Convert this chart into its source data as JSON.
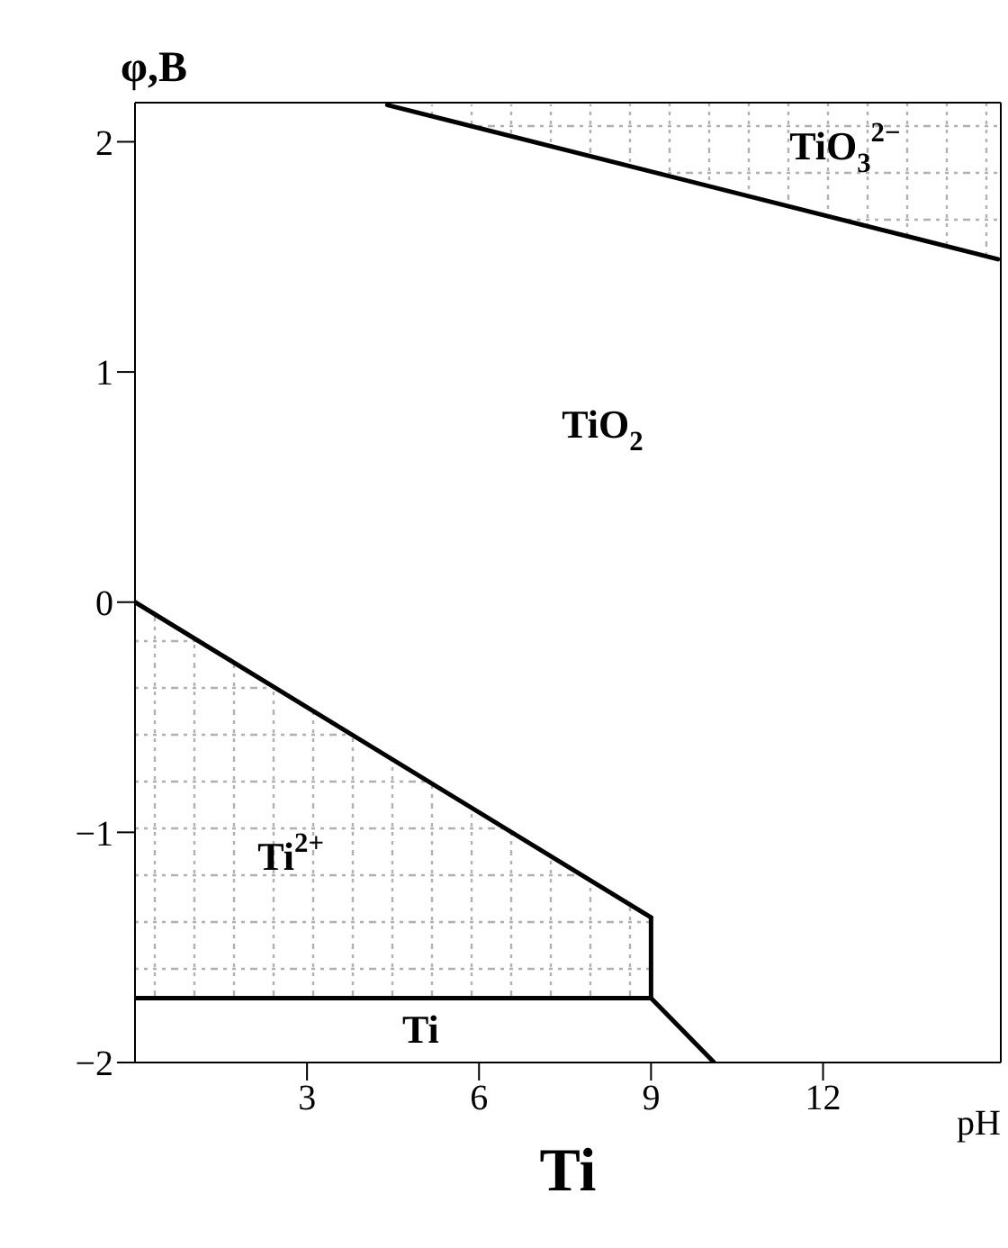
{
  "chart_data": {
    "type": "line",
    "title": "Ti",
    "xlabel": "pH",
    "ylabel": "φ,B",
    "xlim": [
      0,
      15.1
    ],
    "ylim": [
      -2,
      2.17
    ],
    "xticks": [
      3,
      6,
      9,
      12
    ],
    "yticks": [
      {
        "value": -2,
        "label": "−2"
      },
      {
        "value": -1,
        "label": "−1"
      },
      0,
      1,
      2
    ],
    "marker": "none",
    "series": [
      {
        "color": "#000000",
        "x": [
          4.4,
          15.05
        ],
        "values": [
          2.16,
          1.49
        ]
      },
      {
        "color": "#000000",
        "x": [
          0,
          9
        ],
        "values": [
          0,
          -1.37
        ]
      },
      {
        "color": "#000000",
        "x": [
          9,
          9
        ],
        "values": [
          -1.37,
          -1.72
        ]
      },
      {
        "color": "#000000",
        "x": [
          0,
          9
        ],
        "values": [
          -1.72,
          -1.72
        ]
      },
      {
        "color": "#000000",
        "x": [
          9,
          10.1
        ],
        "values": [
          -1.72,
          -2
        ]
      }
    ],
    "annotations": [
      "TiO$_{3}$$^{2−}$",
      "TiO$_{2}$",
      "Ti$^{2+}$",
      "Ti"
    ]
  }
}
